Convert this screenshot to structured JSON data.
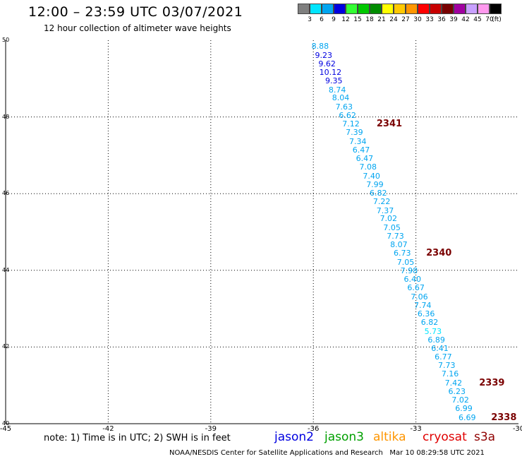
{
  "header": {
    "title": "12:00 – 23:59 UTC 03/07/2021",
    "subtitle": "12 hour collection of altimeter wave heights"
  },
  "legend": {
    "unit": "(ft)",
    "bins": [
      {
        "label": "3",
        "color": "#7f7f7f"
      },
      {
        "label": "6",
        "color": "#00e5ff"
      },
      {
        "label": "9",
        "color": "#00a5f0"
      },
      {
        "label": "12",
        "color": "#0000e0"
      },
      {
        "label": "15",
        "color": "#33ff33"
      },
      {
        "label": "18",
        "color": "#00c800"
      },
      {
        "label": "21",
        "color": "#008c00"
      },
      {
        "label": "24",
        "color": "#ffff00"
      },
      {
        "label": "27",
        "color": "#ffc800"
      },
      {
        "label": "30",
        "color": "#ff9600"
      },
      {
        "label": "33",
        "color": "#ff0000"
      },
      {
        "label": "36",
        "color": "#c80000"
      },
      {
        "label": "39",
        "color": "#780000"
      },
      {
        "label": "42",
        "color": "#a000a0"
      },
      {
        "label": "45",
        "color": "#c8a0ff"
      },
      {
        "label": "70",
        "color": "#ff99ee"
      },
      {
        "label": "",
        "color": "#000000"
      }
    ]
  },
  "axes": {
    "lat_labels": [
      "50",
      "48",
      "46",
      "44",
      "42",
      "40"
    ],
    "lon_labels": [
      "-45",
      "-42",
      "-39",
      "-36",
      "-33",
      "-30"
    ]
  },
  "chart_data": {
    "type": "scatter",
    "xlim": [
      -45,
      -30
    ],
    "ylim": [
      40,
      50
    ],
    "grid": true,
    "points": [
      {
        "lon": -35.8,
        "lat": 49.85,
        "swh": "8.88"
      },
      {
        "lon": -35.7,
        "lat": 49.62,
        "swh": "9.23"
      },
      {
        "lon": -35.6,
        "lat": 49.4,
        "swh": "9.62"
      },
      {
        "lon": -35.5,
        "lat": 49.17,
        "swh": "10.12"
      },
      {
        "lon": -35.4,
        "lat": 48.95,
        "swh": "9.35"
      },
      {
        "lon": -35.3,
        "lat": 48.72,
        "swh": "8.74"
      },
      {
        "lon": -35.2,
        "lat": 48.5,
        "swh": "8.04"
      },
      {
        "lon": -35.1,
        "lat": 48.27,
        "swh": "7.63"
      },
      {
        "lon": -35.0,
        "lat": 48.05,
        "swh": "6.62"
      },
      {
        "lon": -34.9,
        "lat": 47.82,
        "swh": "7.12"
      },
      {
        "lon": -34.8,
        "lat": 47.6,
        "swh": "7.39"
      },
      {
        "lon": -34.7,
        "lat": 47.37,
        "swh": "7.34"
      },
      {
        "lon": -34.6,
        "lat": 47.15,
        "swh": "6.47"
      },
      {
        "lon": -34.5,
        "lat": 46.92,
        "swh": "6.47"
      },
      {
        "lon": -34.4,
        "lat": 46.7,
        "swh": "7.08"
      },
      {
        "lon": -34.3,
        "lat": 46.47,
        "swh": "7.40"
      },
      {
        "lon": -34.2,
        "lat": 46.25,
        "swh": "7.99"
      },
      {
        "lon": -34.1,
        "lat": 46.02,
        "swh": "6.82"
      },
      {
        "lon": -34.0,
        "lat": 45.8,
        "swh": "7.22"
      },
      {
        "lon": -33.9,
        "lat": 45.57,
        "swh": "7.37"
      },
      {
        "lon": -33.8,
        "lat": 45.35,
        "swh": "7.02"
      },
      {
        "lon": -33.7,
        "lat": 45.12,
        "swh": "7.05"
      },
      {
        "lon": -33.6,
        "lat": 44.9,
        "swh": "7.73"
      },
      {
        "lon": -33.5,
        "lat": 44.67,
        "swh": "8.07"
      },
      {
        "lon": -33.4,
        "lat": 44.45,
        "swh": "6.73"
      },
      {
        "lon": -33.3,
        "lat": 44.22,
        "swh": "7.05"
      },
      {
        "lon": -33.2,
        "lat": 44.0,
        "swh": "7.98"
      },
      {
        "lon": -33.1,
        "lat": 43.77,
        "swh": "6.40"
      },
      {
        "lon": -33.0,
        "lat": 43.55,
        "swh": "6.67"
      },
      {
        "lon": -32.9,
        "lat": 43.32,
        "swh": "7.06"
      },
      {
        "lon": -32.8,
        "lat": 43.1,
        "swh": "7.74"
      },
      {
        "lon": -32.7,
        "lat": 42.87,
        "swh": "6.36"
      },
      {
        "lon": -32.6,
        "lat": 42.65,
        "swh": "6.82"
      },
      {
        "lon": -32.5,
        "lat": 42.42,
        "swh": "5.73"
      },
      {
        "lon": -32.4,
        "lat": 42.2,
        "swh": "6.89"
      },
      {
        "lon": -32.3,
        "lat": 41.97,
        "swh": "6.41"
      },
      {
        "lon": -32.2,
        "lat": 41.75,
        "swh": "6.77"
      },
      {
        "lon": -32.1,
        "lat": 41.52,
        "swh": "7.73"
      },
      {
        "lon": -32.0,
        "lat": 41.3,
        "swh": "7.16"
      },
      {
        "lon": -31.9,
        "lat": 41.07,
        "swh": "7.42"
      },
      {
        "lon": -31.8,
        "lat": 40.85,
        "swh": "6.23"
      },
      {
        "lon": -31.7,
        "lat": 40.62,
        "swh": "7.02"
      },
      {
        "lon": -31.6,
        "lat": 40.4,
        "swh": "6.99"
      },
      {
        "lon": -31.5,
        "lat": 40.17,
        "swh": "6.69"
      }
    ],
    "pass_labels": [
      {
        "text": "2341",
        "lon": -34.15,
        "lat": 47.82
      },
      {
        "text": "2340",
        "lon": -32.7,
        "lat": 44.45
      },
      {
        "text": "2339",
        "lon": -31.15,
        "lat": 41.07
      },
      {
        "text": "2338",
        "lon": -30.8,
        "lat": 40.17
      }
    ]
  },
  "footer": {
    "note": "note: 1) Time is in UTC; 2) SWH is in feet",
    "satellites": [
      {
        "name": "jason2",
        "color": "#0000e0"
      },
      {
        "name": "jason3",
        "color": "#00a000"
      },
      {
        "name": "altika",
        "color": "#ff9600"
      },
      {
        "name": "cryosat",
        "color": "#e00000"
      },
      {
        "name": "s3a",
        "color": "#900000"
      }
    ],
    "credit": "NOAA/NESDIS Center for Satellite Applications and Research",
    "timestamp": "Mar 10 08:29:58 UTC 2021"
  }
}
